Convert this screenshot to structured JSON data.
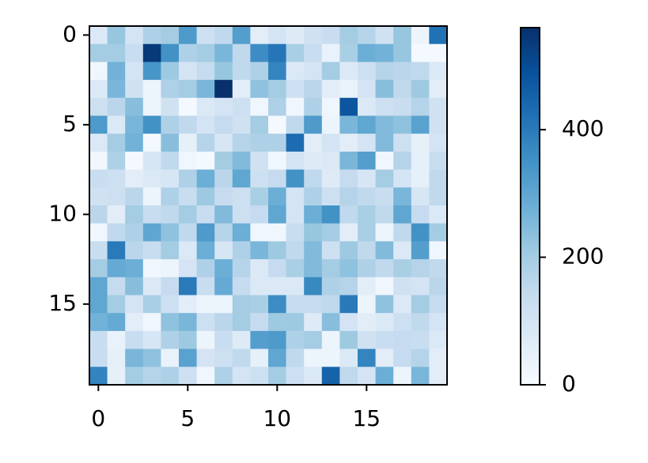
{
  "chart_data": {
    "type": "heatmap",
    "colormap": "Blues",
    "xlim": [
      -0.5,
      19.5
    ],
    "ylim": [
      19.5,
      -0.5
    ],
    "xticks": [
      0,
      5,
      10,
      15
    ],
    "yticks": [
      0,
      5,
      10,
      15
    ],
    "zlim": [
      0,
      560
    ],
    "colorbar_ticks": [
      0,
      200,
      400
    ],
    "z": [
      [
        80,
        220,
        100,
        180,
        200,
        330,
        120,
        150,
        320,
        60,
        100,
        70,
        110,
        130,
        200,
        170,
        110,
        220,
        30,
        420
      ],
      [
        200,
        200,
        130,
        540,
        350,
        180,
        200,
        260,
        150,
        360,
        410,
        190,
        130,
        40,
        190,
        280,
        270,
        220,
        10,
        10
      ],
      [
        20,
        270,
        100,
        340,
        210,
        100,
        140,
        220,
        150,
        180,
        380,
        80,
        100,
        200,
        80,
        120,
        170,
        160,
        150,
        80
      ],
      [
        80,
        260,
        110,
        30,
        180,
        200,
        260,
        560,
        60,
        230,
        200,
        120,
        160,
        60,
        40,
        100,
        240,
        150,
        210,
        60
      ],
      [
        120,
        160,
        240,
        30,
        110,
        10,
        80,
        100,
        120,
        20,
        180,
        20,
        180,
        20,
        480,
        80,
        120,
        130,
        170,
        110
      ],
      [
        330,
        80,
        260,
        350,
        180,
        150,
        100,
        140,
        110,
        200,
        10,
        150,
        330,
        30,
        260,
        300,
        250,
        230,
        310,
        110
      ],
      [
        80,
        200,
        270,
        10,
        240,
        50,
        170,
        90,
        170,
        180,
        180,
        430,
        60,
        100,
        60,
        100,
        250,
        120,
        50,
        100
      ],
      [
        20,
        180,
        10,
        90,
        150,
        20,
        10,
        200,
        250,
        110,
        20,
        100,
        70,
        80,
        260,
        320,
        20,
        170,
        50,
        130
      ],
      [
        130,
        120,
        60,
        80,
        90,
        180,
        280,
        160,
        300,
        120,
        140,
        350,
        150,
        70,
        140,
        90,
        200,
        100,
        50,
        150
      ],
      [
        110,
        120,
        160,
        30,
        180,
        130,
        210,
        140,
        120,
        190,
        280,
        100,
        180,
        120,
        170,
        150,
        130,
        260,
        90,
        150
      ],
      [
        160,
        60,
        200,
        130,
        150,
        200,
        130,
        250,
        120,
        140,
        300,
        100,
        280,
        350,
        150,
        190,
        150,
        300,
        140,
        80
      ],
      [
        20,
        150,
        180,
        300,
        230,
        150,
        330,
        170,
        280,
        20,
        20,
        130,
        220,
        200,
        60,
        190,
        30,
        150,
        350,
        200
      ],
      [
        130,
        400,
        160,
        130,
        200,
        80,
        280,
        90,
        180,
        260,
        210,
        150,
        250,
        120,
        210,
        150,
        250,
        80,
        320,
        20
      ],
      [
        200,
        290,
        280,
        20,
        30,
        100,
        180,
        280,
        170,
        80,
        140,
        190,
        250,
        200,
        230,
        180,
        150,
        190,
        170,
        150
      ],
      [
        300,
        140,
        240,
        80,
        140,
        400,
        130,
        290,
        140,
        80,
        80,
        80,
        370,
        180,
        170,
        60,
        20,
        110,
        100,
        160
      ],
      [
        300,
        200,
        100,
        190,
        120,
        60,
        30,
        30,
        200,
        190,
        360,
        140,
        140,
        150,
        400,
        30,
        230,
        80,
        200,
        140
      ],
      [
        270,
        290,
        60,
        20,
        230,
        260,
        120,
        160,
        200,
        140,
        210,
        210,
        70,
        240,
        100,
        60,
        80,
        120,
        150,
        100
      ],
      [
        130,
        40,
        130,
        90,
        180,
        210,
        30,
        130,
        70,
        320,
        330,
        180,
        200,
        30,
        210,
        110,
        130,
        140,
        130,
        80
      ],
      [
        130,
        50,
        260,
        230,
        40,
        310,
        100,
        120,
        150,
        50,
        300,
        150,
        30,
        30,
        80,
        380,
        60,
        140,
        170,
        60
      ],
      [
        380,
        50,
        200,
        170,
        180,
        120,
        20,
        180,
        100,
        120,
        200,
        120,
        80,
        450,
        150,
        100,
        280,
        30,
        260,
        60
      ]
    ]
  }
}
